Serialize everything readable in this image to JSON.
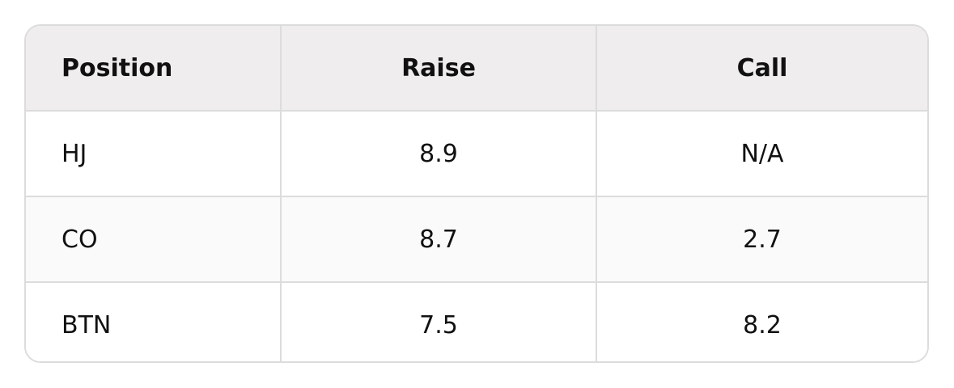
{
  "table": {
    "headers": [
      "Position",
      "Raise",
      "Call"
    ],
    "rows": [
      [
        "HJ",
        8.9,
        "N/A"
      ],
      [
        "CO",
        8.7,
        2.7
      ],
      [
        "BTN",
        7.5,
        8.2
      ]
    ]
  }
}
